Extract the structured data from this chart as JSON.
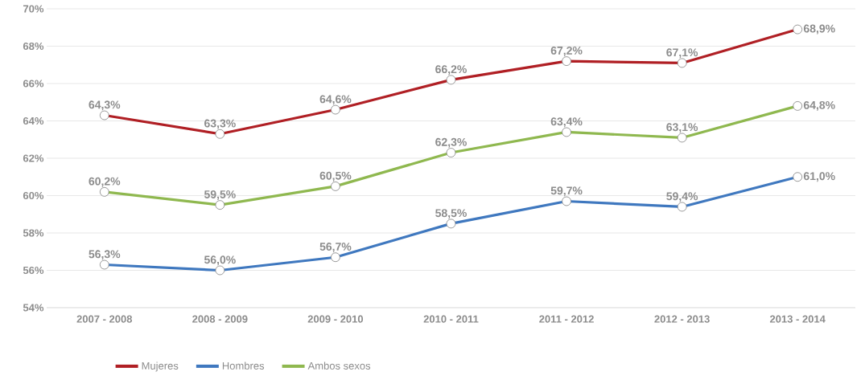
{
  "chart_data": {
    "type": "line",
    "categories": [
      "2007 - 2008",
      "2008 - 2009",
      "2009 - 2010",
      "2010 - 2011",
      "2011 - 2012",
      "2012 - 2013",
      "2013 - 2014"
    ],
    "series": [
      {
        "name": "Mujeres",
        "color": "#b01f24",
        "values": [
          64.3,
          63.3,
          64.6,
          66.2,
          67.2,
          67.1,
          68.9
        ],
        "value_labels": [
          "64,3%",
          "63,3%",
          "64,6%",
          "66,2%",
          "67,2%",
          "67,1%",
          "68,9%"
        ]
      },
      {
        "name": "Hombres",
        "color": "#3f78bf",
        "values": [
          56.3,
          56.0,
          56.7,
          58.5,
          59.7,
          59.4,
          61.0
        ],
        "value_labels": [
          "56,3%",
          "56,0%",
          "56,7%",
          "58,5%",
          "59,7%",
          "59,4%",
          "61,0%"
        ]
      },
      {
        "name": "Ambos sexos",
        "color": "#8fb84f",
        "values": [
          60.2,
          59.5,
          60.5,
          62.3,
          63.4,
          63.1,
          64.8
        ],
        "value_labels": [
          "60,2%",
          "59,5%",
          "60,5%",
          "62,3%",
          "63,4%",
          "63,1%",
          "64,8%"
        ]
      }
    ],
    "ylim": [
      54,
      70
    ],
    "yticks": [
      {
        "value": 54,
        "label": "54%"
      },
      {
        "value": 56,
        "label": "56%"
      },
      {
        "value": 58,
        "label": "58%"
      },
      {
        "value": 60,
        "label": "60%"
      },
      {
        "value": 62,
        "label": "62%"
      },
      {
        "value": 64,
        "label": "64%"
      },
      {
        "value": 66,
        "label": "66%"
      },
      {
        "value": 68,
        "label": "68%"
      },
      {
        "value": 70,
        "label": "70%"
      }
    ],
    "grid": "y",
    "legend": "bottom",
    "marker": "circle",
    "line_style": "solid"
  }
}
